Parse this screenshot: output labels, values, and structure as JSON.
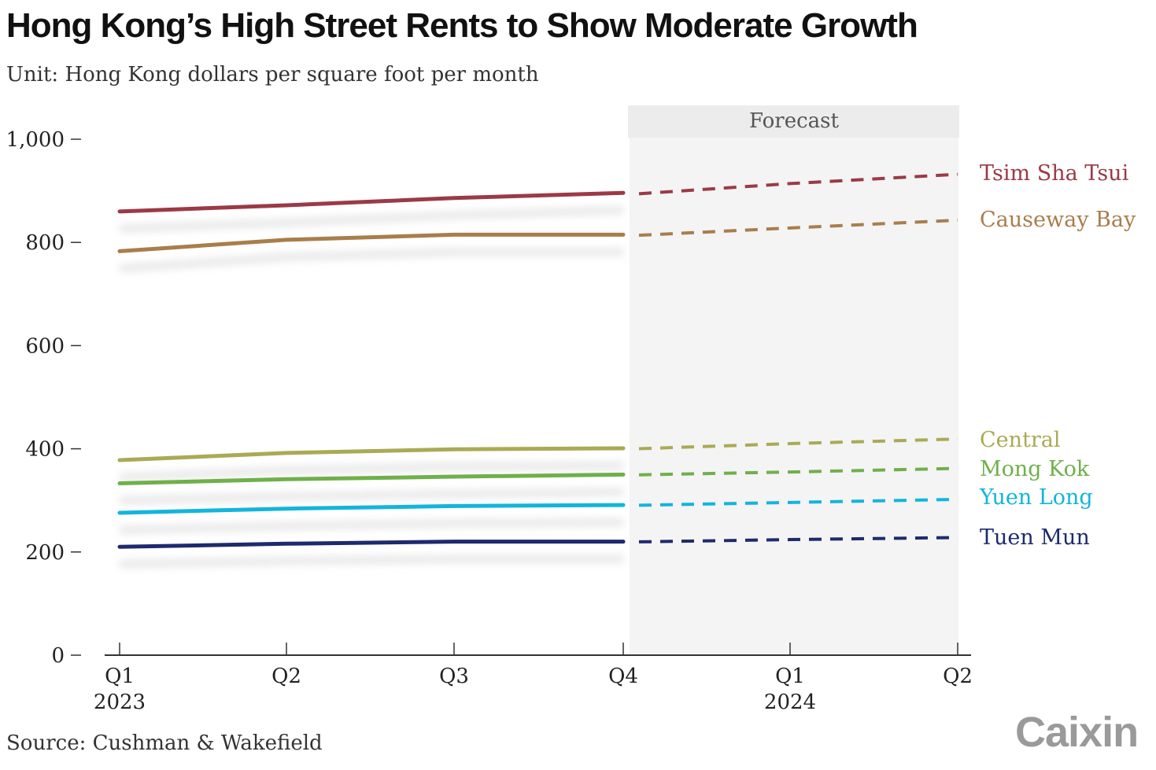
{
  "title": "Hong Kong’s High Street Rents to Show Moderate Growth",
  "subtitle": "Unit: Hong Kong dollars per square foot per month",
  "source": "Source: Cushman & Wakefield",
  "logo": "Caixin",
  "chart_data": {
    "type": "line",
    "x": [
      "Q1",
      "Q2",
      "Q3",
      "Q4",
      "Q1",
      "Q2"
    ],
    "year_labels": [
      {
        "index": 0,
        "label": "2023"
      },
      {
        "index": 4,
        "label": "2024"
      }
    ],
    "forecast_label": "Forecast",
    "forecast_start_index": 3,
    "ylim": [
      0,
      1000
    ],
    "yticks": [
      {
        "value": 0,
        "label": "0"
      },
      {
        "value": 200,
        "label": "200"
      },
      {
        "value": 400,
        "label": "400"
      },
      {
        "value": 600,
        "label": "600"
      },
      {
        "value": 800,
        "label": "800"
      },
      {
        "value": 1000,
        "label": "1,000"
      }
    ],
    "grid": false,
    "legend": "direct labels at right end of lines",
    "series": [
      {
        "name": "Tsim Sha Tsui",
        "color": "#9b3a46",
        "values": [
          860,
          872,
          886,
          896,
          914,
          932
        ]
      },
      {
        "name": "Causeway Bay",
        "color": "#a97d4c",
        "values": [
          783,
          805,
          815,
          815,
          828,
          843
        ]
      },
      {
        "name": "Central",
        "color": "#aaaa55",
        "values": [
          378,
          392,
          399,
          401,
          410,
          419
        ]
      },
      {
        "name": "Mong Kok",
        "color": "#6fb04a",
        "values": [
          333,
          341,
          346,
          350,
          355,
          362
        ]
      },
      {
        "name": "Yuen Long",
        "color": "#12b5dc",
        "values": [
          276,
          284,
          289,
          291,
          296,
          302
        ]
      },
      {
        "name": "Tuen Mun",
        "color": "#1e2a6e",
        "values": [
          210,
          216,
          220,
          220,
          224,
          228
        ]
      }
    ]
  }
}
